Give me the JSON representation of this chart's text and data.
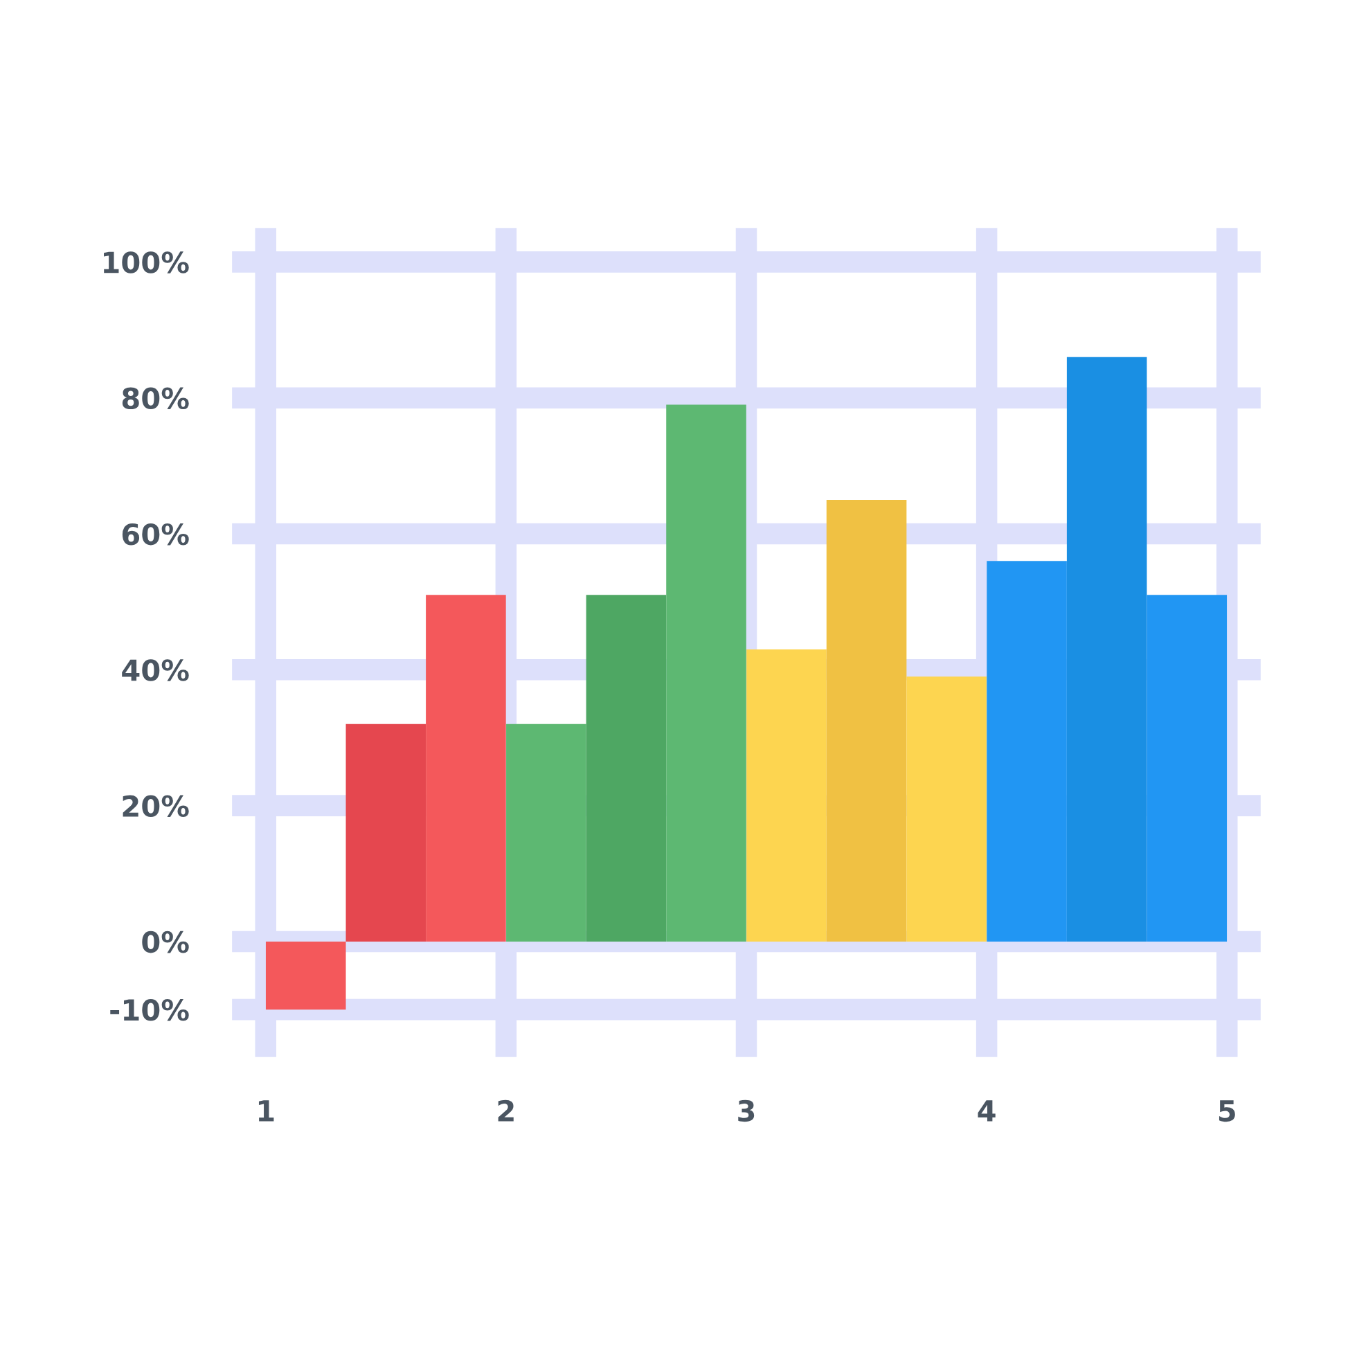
{
  "chart_data": {
    "type": "bar",
    "x": [
      1.167,
      1.5,
      1.833,
      2.167,
      2.5,
      2.833,
      3.167,
      3.5,
      3.833,
      4.167,
      4.5,
      4.833
    ],
    "values": [
      -10,
      32,
      51,
      32,
      51,
      79,
      43,
      65,
      39,
      56,
      86,
      51
    ],
    "colors": [
      "#f4585b",
      "#e5474f",
      "#f4585b",
      "#5db872",
      "#4ea763",
      "#5db872",
      "#fdd550",
      "#f0c143",
      "#fdd550",
      "#2196f3",
      "#1a8fe3",
      "#2196f3"
    ],
    "xlim": [
      0.86,
      5.14
    ],
    "xticks": [
      1,
      2,
      3,
      4,
      5
    ],
    "ylim": [
      -17,
      105
    ],
    "yticks": [
      {
        "value": -10,
        "label": "-10%"
      },
      {
        "value": 0,
        "label": "0%"
      },
      {
        "value": 20,
        "label": "20%"
      },
      {
        "value": 40,
        "label": "40%"
      },
      {
        "value": 60,
        "label": "60%"
      },
      {
        "value": 80,
        "label": "80%"
      },
      {
        "value": 100,
        "label": "100%"
      }
    ],
    "grid": true
  }
}
